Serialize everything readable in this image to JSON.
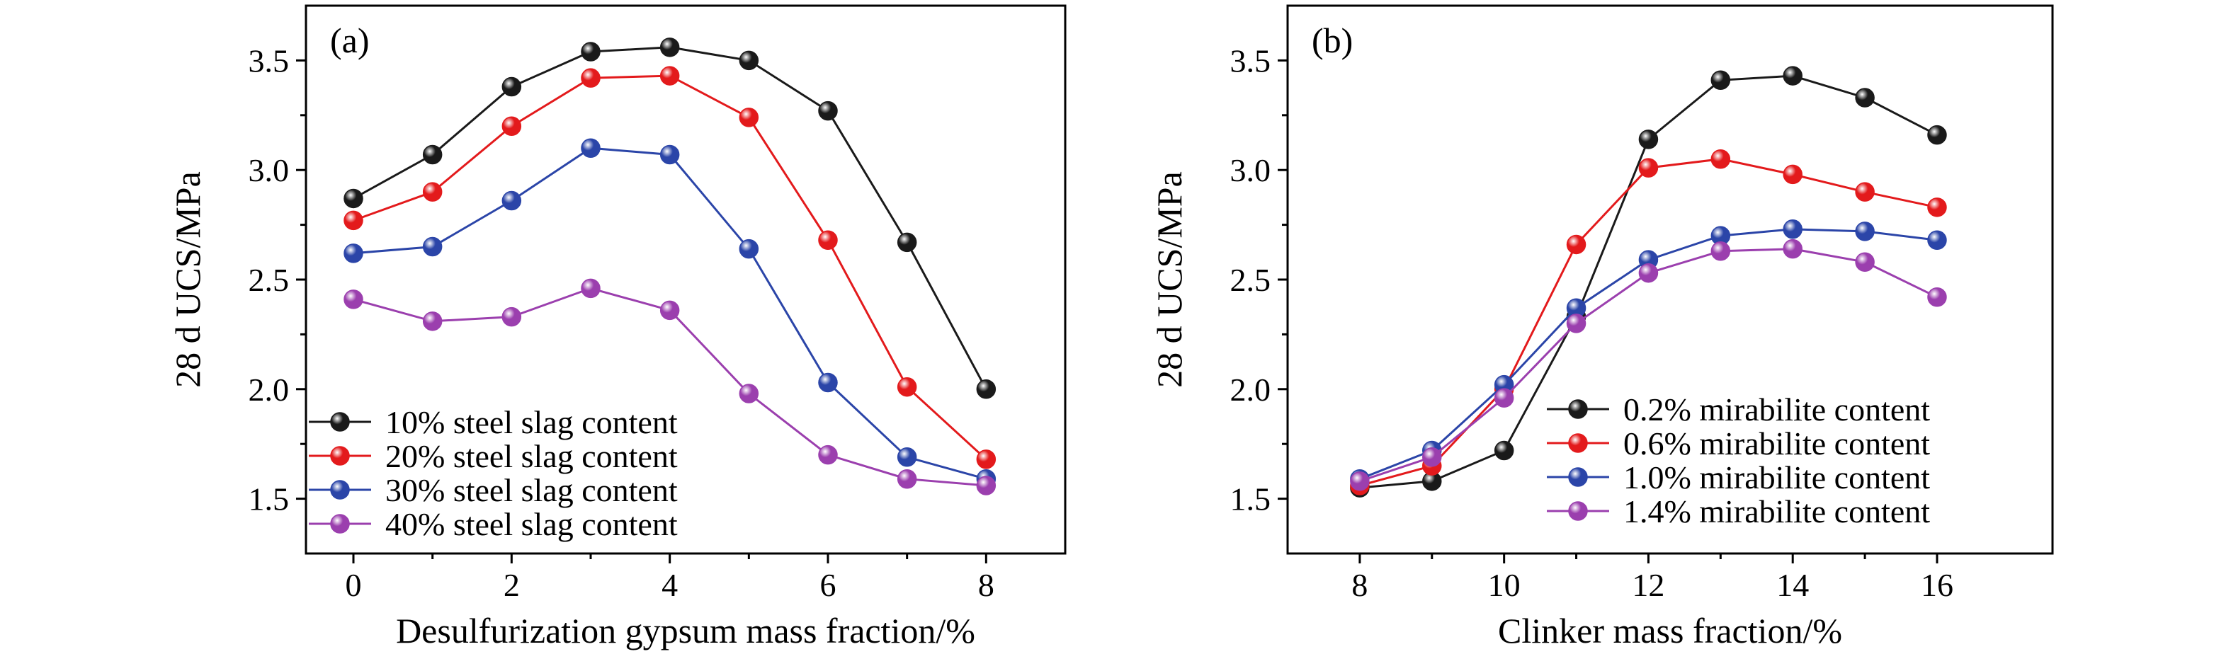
{
  "chart_data": [
    {
      "type": "line",
      "panel_label": "(a)",
      "xlabel": "Desulfurization gypsum mass fraction/%",
      "ylabel": "28 d UCS/MPa",
      "xlim": [
        -0.6,
        9.0
      ],
      "ylim": [
        1.25,
        3.75
      ],
      "xticks": [
        0,
        2,
        4,
        6,
        8
      ],
      "yticks": [
        1.5,
        2.0,
        2.5,
        3.0,
        3.5
      ],
      "x": [
        0,
        1,
        2,
        3,
        4,
        5,
        6,
        7,
        8
      ],
      "legend_position": "lower-left",
      "series": [
        {
          "name": "10% steel slag content",
          "color": "#1a1a1a",
          "values": [
            2.87,
            3.07,
            3.38,
            3.54,
            3.56,
            3.5,
            3.27,
            2.67,
            2.0
          ]
        },
        {
          "name": "20% steel slag content",
          "color": "#e31a1c",
          "values": [
            2.77,
            2.9,
            3.2,
            3.42,
            3.43,
            3.24,
            2.68,
            2.01,
            1.68
          ]
        },
        {
          "name": "30% steel slag content",
          "color": "#2b45a8",
          "values": [
            2.62,
            2.65,
            2.86,
            3.1,
            3.07,
            2.64,
            2.03,
            1.69,
            1.59
          ]
        },
        {
          "name": "40% steel slag content",
          "color": "#9b3fae",
          "values": [
            2.41,
            2.31,
            2.33,
            2.46,
            2.36,
            1.98,
            1.7,
            1.59,
            1.56
          ]
        }
      ]
    },
    {
      "type": "line",
      "panel_label": "(b)",
      "xlabel": "Clinker mass fraction/%",
      "ylabel": "28 d UCS/MPa",
      "xlim": [
        7.0,
        17.6
      ],
      "ylim": [
        1.25,
        3.75
      ],
      "xticks": [
        8,
        10,
        12,
        14,
        16
      ],
      "yticks": [
        1.5,
        2.0,
        2.5,
        3.0,
        3.5
      ],
      "x": [
        8,
        9,
        10,
        11,
        12,
        13,
        14,
        15,
        16
      ],
      "legend_position": "lower-right",
      "series": [
        {
          "name": "0.2% mirabilite content",
          "color": "#1a1a1a",
          "values": [
            1.55,
            1.58,
            1.72,
            2.33,
            3.14,
            3.41,
            3.43,
            3.33,
            3.16
          ]
        },
        {
          "name": "0.6% mirabilite content",
          "color": "#e31a1c",
          "values": [
            1.56,
            1.65,
            2.0,
            2.66,
            3.01,
            3.05,
            2.98,
            2.9,
            2.83
          ]
        },
        {
          "name": "1.0% mirabilite content",
          "color": "#2b45a8",
          "values": [
            1.59,
            1.72,
            2.02,
            2.37,
            2.59,
            2.7,
            2.73,
            2.72,
            2.68
          ]
        },
        {
          "name": "1.4% mirabilite content",
          "color": "#9b3fae",
          "values": [
            1.58,
            1.69,
            1.96,
            2.3,
            2.53,
            2.63,
            2.64,
            2.58,
            2.42
          ]
        }
      ]
    }
  ]
}
